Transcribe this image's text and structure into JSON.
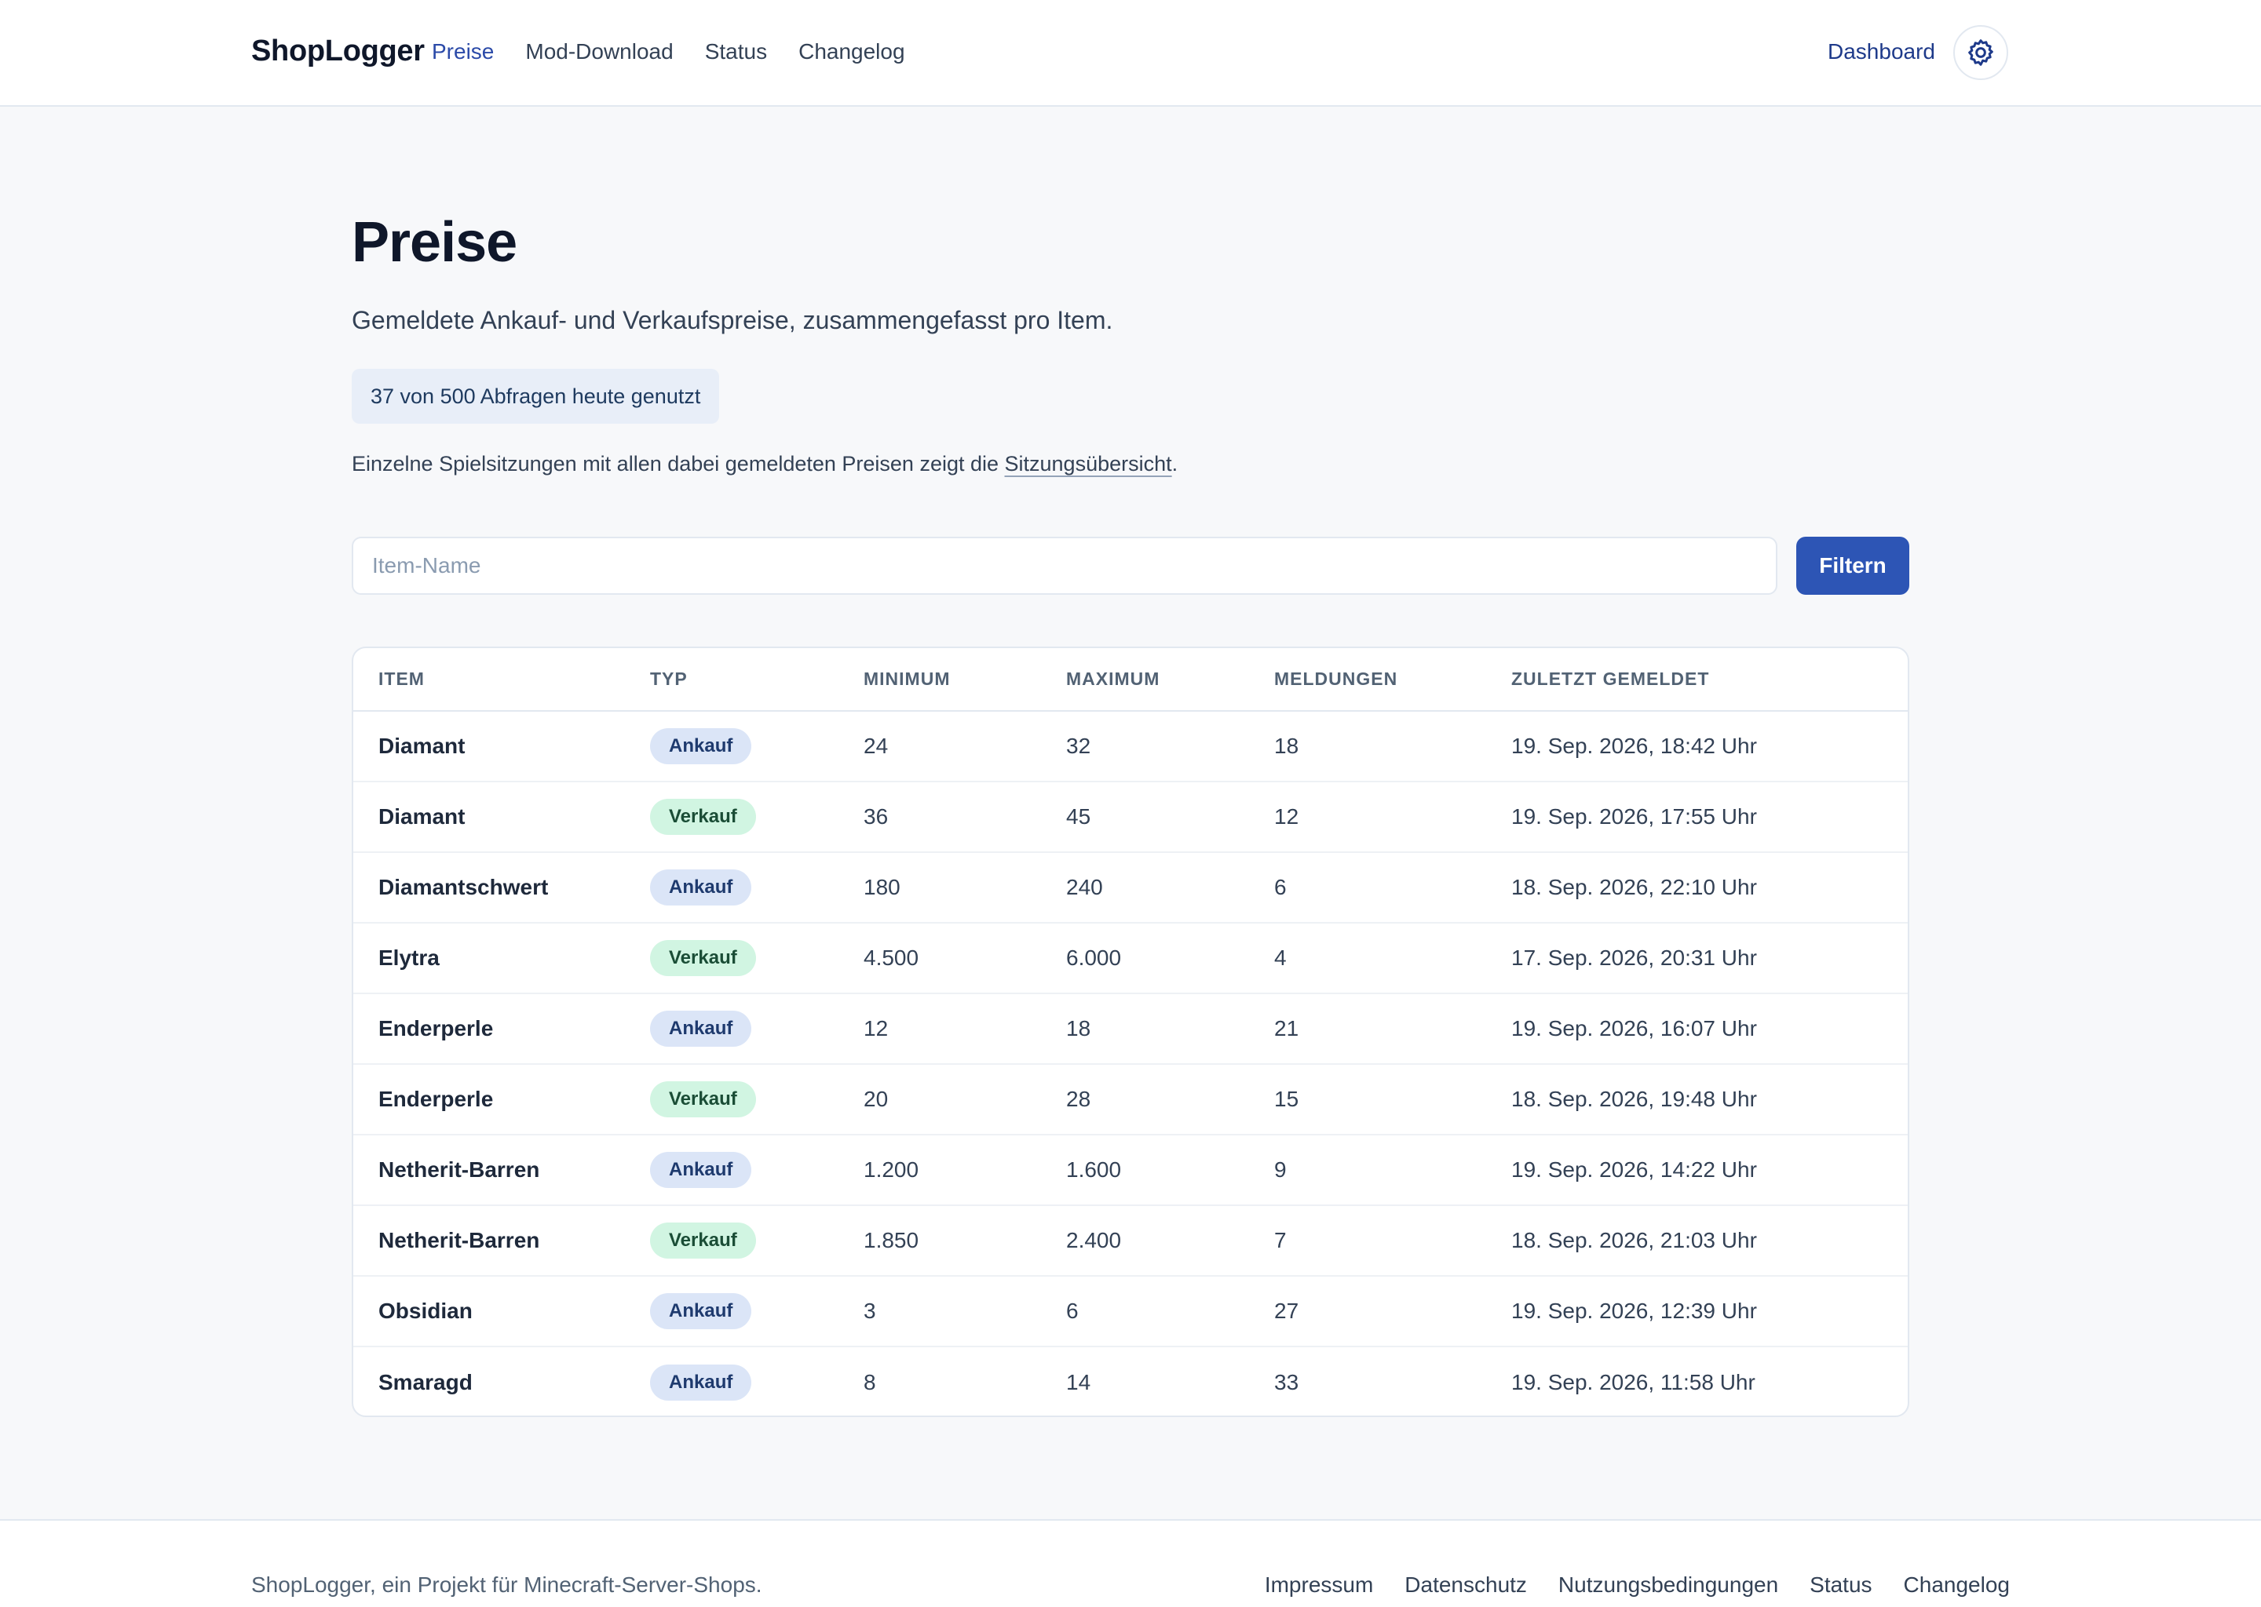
{
  "header": {
    "brand": "ShopLogger",
    "nav": [
      "Preise",
      "Mod-Download",
      "Status",
      "Changelog"
    ],
    "dashboard": "Dashboard",
    "settings_icon": "gear-icon"
  },
  "main": {
    "title": "Preise",
    "subtitle": "Gemeldete Ankauf- und Verkaufspreise, zusammengefasst pro Item.",
    "quota": "37 von 500 Abfragen heute genutzt",
    "hint_before": "Einzelne Spielsitzungen mit allen dabei gemeldeten Preisen zeigt die ",
    "hint_link": "Sitzungsübersicht",
    "hint_after": ".",
    "filter_placeholder": "Item-Name",
    "filter_value": "",
    "filter_button": "Filtern"
  },
  "table": {
    "headers": [
      "ITEM",
      "TYP",
      "MINIMUM",
      "MAXIMUM",
      "MELDUNGEN",
      "ZULETZT GEMELDET"
    ],
    "rows": [
      {
        "item": "Diamant",
        "type": "Ankauf",
        "min": "24",
        "max": "32",
        "count": "18",
        "last": "19. Sep. 2026, 18:42 Uhr"
      },
      {
        "item": "Diamant",
        "type": "Verkauf",
        "min": "36",
        "max": "45",
        "count": "12",
        "last": "19. Sep. 2026, 17:55 Uhr"
      },
      {
        "item": "Diamantschwert",
        "type": "Ankauf",
        "min": "180",
        "max": "240",
        "count": "6",
        "last": "18. Sep. 2026, 22:10 Uhr"
      },
      {
        "item": "Elytra",
        "type": "Verkauf",
        "min": "4.500",
        "max": "6.000",
        "count": "4",
        "last": "17. Sep. 2026, 20:31 Uhr"
      },
      {
        "item": "Enderperle",
        "type": "Ankauf",
        "min": "12",
        "max": "18",
        "count": "21",
        "last": "19. Sep. 2026, 16:07 Uhr"
      },
      {
        "item": "Enderperle",
        "type": "Verkauf",
        "min": "20",
        "max": "28",
        "count": "15",
        "last": "18. Sep. 2026, 19:48 Uhr"
      },
      {
        "item": "Netherit-Barren",
        "type": "Ankauf",
        "min": "1.200",
        "max": "1.600",
        "count": "9",
        "last": "19. Sep. 2026, 14:22 Uhr"
      },
      {
        "item": "Netherit-Barren",
        "type": "Verkauf",
        "min": "1.850",
        "max": "2.400",
        "count": "7",
        "last": "18. Sep. 2026, 21:03 Uhr"
      },
      {
        "item": "Obsidian",
        "type": "Ankauf",
        "min": "3",
        "max": "6",
        "count": "27",
        "last": "19. Sep. 2026, 12:39 Uhr"
      },
      {
        "item": "Smaragd",
        "type": "Ankauf",
        "min": "8",
        "max": "14",
        "count": "33",
        "last": "19. Sep. 2026, 11:58 Uhr"
      }
    ]
  },
  "footer": {
    "text": "ShopLogger, ein Projekt für Minecraft-Server-Shops.",
    "links": [
      "Impressum",
      "Datenschutz",
      "Nutzungsbedingungen",
      "Status",
      "Changelog"
    ]
  },
  "colors": {
    "accent": "#2d55b5",
    "ankauf_badge": "#dbe5f7",
    "verkauf_badge": "#d1f5e2"
  }
}
